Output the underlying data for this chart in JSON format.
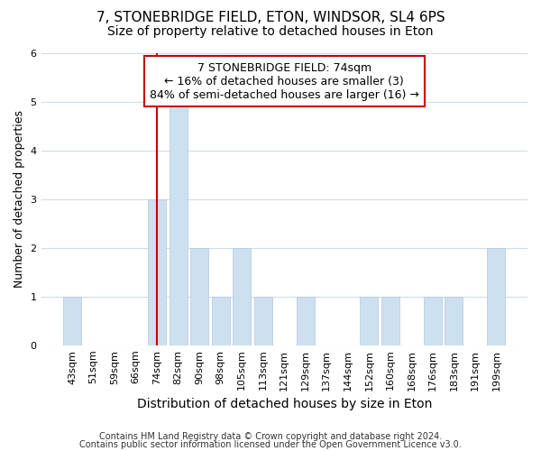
{
  "title1": "7, STONEBRIDGE FIELD, ETON, WINDSOR, SL4 6PS",
  "title2": "Size of property relative to detached houses in Eton",
  "xlabel": "Distribution of detached houses by size in Eton",
  "ylabel": "Number of detached properties",
  "categories": [
    "43sqm",
    "51sqm",
    "59sqm",
    "66sqm",
    "74sqm",
    "82sqm",
    "90sqm",
    "98sqm",
    "105sqm",
    "113sqm",
    "121sqm",
    "129sqm",
    "137sqm",
    "144sqm",
    "152sqm",
    "160sqm",
    "168sqm",
    "176sqm",
    "183sqm",
    "191sqm",
    "199sqm"
  ],
  "values": [
    1,
    0,
    0,
    0,
    3,
    5,
    2,
    1,
    2,
    1,
    0,
    1,
    0,
    0,
    1,
    1,
    0,
    1,
    1,
    0,
    2
  ],
  "bar_color": "#cce0f0",
  "bar_edge_color": "#b0c8e0",
  "highlight_index": 4,
  "vline_color": "#cc0000",
  "annotation_text": "7 STONEBRIDGE FIELD: 74sqm\n← 16% of detached houses are smaller (3)\n84% of semi-detached houses are larger (16) →",
  "annotation_box_facecolor": "#ffffff",
  "annotation_box_edgecolor": "#cc0000",
  "ylim": [
    0,
    6
  ],
  "yticks": [
    0,
    1,
    2,
    3,
    4,
    5,
    6
  ],
  "footer1": "Contains HM Land Registry data © Crown copyright and database right 2024.",
  "footer2": "Contains public sector information licensed under the Open Government Licence v3.0.",
  "bg_color": "#ffffff",
  "plot_bg_color": "#ffffff",
  "grid_color": "#d0dce8",
  "title1_fontsize": 11,
  "title2_fontsize": 10,
  "xlabel_fontsize": 10,
  "ylabel_fontsize": 9,
  "tick_fontsize": 8,
  "annotation_fontsize": 9,
  "footer_fontsize": 7
}
